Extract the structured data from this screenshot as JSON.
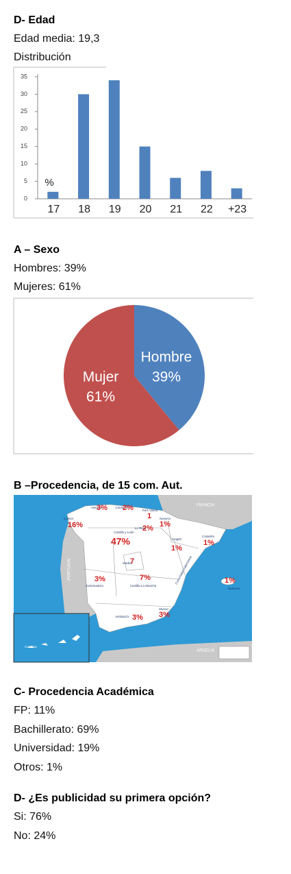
{
  "age": {
    "heading": "D- Edad",
    "lines": [
      "Edad media: 19,3",
      "Distribución"
    ]
  },
  "sex": {
    "heading": "A – Sexo",
    "lines": [
      "Hombres: 39%",
      "Mujeres: 61%"
    ]
  },
  "origin": {
    "heading": "B –Procedencia, de 15 com. Aut.",
    "regions": [
      {
        "name": "Galicia",
        "value": "16%"
      },
      {
        "name": "Asturias",
        "value": "3%"
      },
      {
        "name": "Cantabria",
        "value": "2%"
      },
      {
        "name": "País Vasco",
        "value": "1"
      },
      {
        "name": "Navarra",
        "value": "1%"
      },
      {
        "name": "La Rioja",
        "value": "2%"
      },
      {
        "name": "Castilla y León",
        "value": "47%"
      },
      {
        "name": "Aragón",
        "value": "1%"
      },
      {
        "name": "Cataluña",
        "value": "1%"
      },
      {
        "name": "Madrid",
        "value": "7"
      },
      {
        "name": "Castilla-La Mancha",
        "value": "7%"
      },
      {
        "name": "Extremadura",
        "value": "3%"
      },
      {
        "name": "Andalucía",
        "value": "3%"
      },
      {
        "name": "Murcia",
        "value": "3%"
      },
      {
        "name": "Baleares",
        "value": "1%"
      }
    ],
    "places": [
      "Comunidad Valenciana",
      "Canarias",
      "FRANCIA",
      "PORTUGAL",
      "ARGELIA"
    ]
  },
  "academic": {
    "heading": "C- Procedencia Académica",
    "lines": [
      "FP: 11%",
      "Bachillerato:  69%",
      "Universidad:  19%",
      "Otros: 1%"
    ]
  },
  "advert": {
    "heading": "D- ¿Es publicidad su primera opción?",
    "lines": [
      "Si:  76%",
      "No: 24%"
    ]
  },
  "chart_data": [
    {
      "type": "bar",
      "annotation": "%",
      "categories": [
        "17",
        "18",
        "19",
        "20",
        "21",
        "22",
        "+23"
      ],
      "values": [
        2,
        30,
        34,
        15,
        6,
        8,
        3
      ],
      "color": "#4f81bd",
      "ylim": [
        0,
        35
      ],
      "yticks": [
        0,
        5,
        10,
        15,
        20,
        25,
        30,
        35
      ]
    },
    {
      "type": "pie",
      "categories": [
        "Hombre",
        "Mujer"
      ],
      "values": [
        39,
        61
      ],
      "value_labels": [
        "39%",
        "61%"
      ],
      "colors": [
        "#4f81bd",
        "#c0504d"
      ]
    }
  ]
}
